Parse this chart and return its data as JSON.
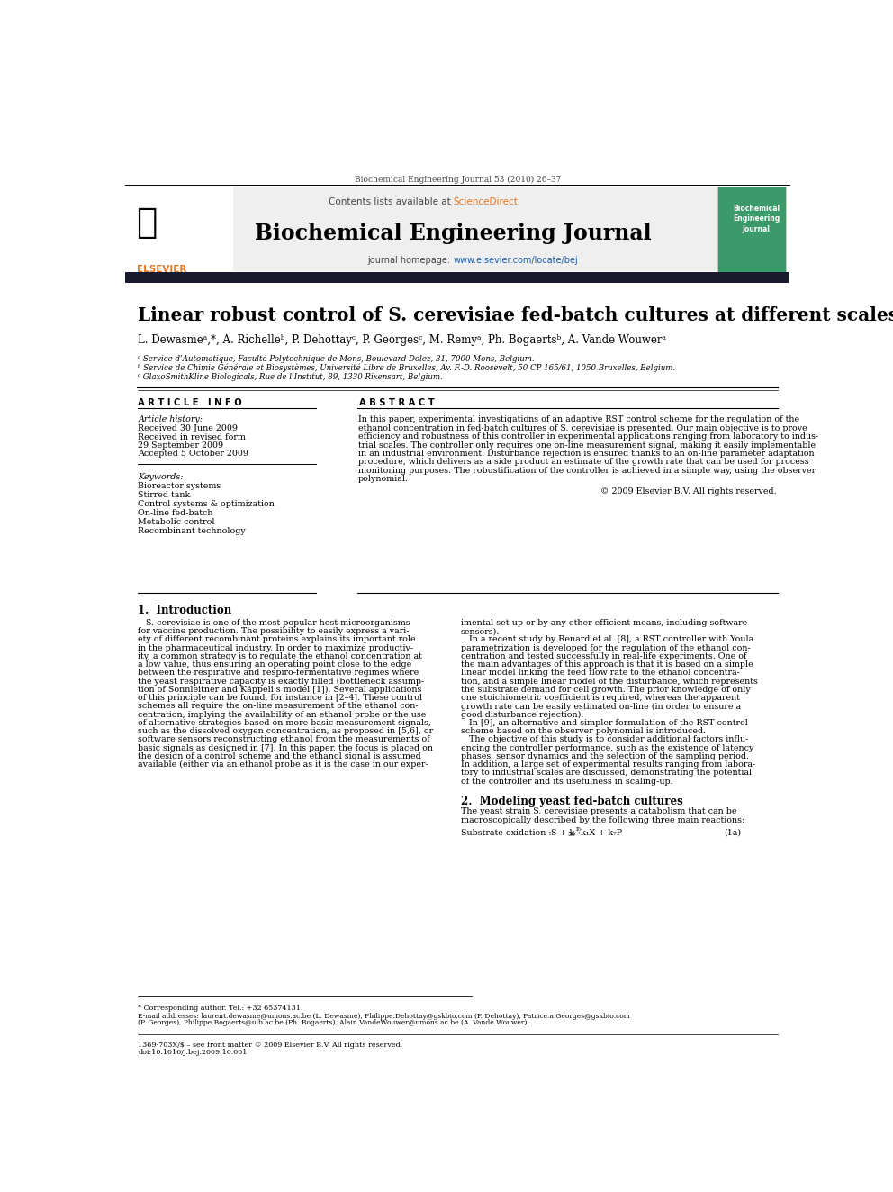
{
  "page_width": 9.92,
  "page_height": 13.23,
  "background_color": "#ffffff",
  "journal_header_text": "Biochemical Engineering Journal 53 (2010) 26–37",
  "journal_name": "Biochemical Engineering Journal",
  "contents_text": "Contents lists available at ScienceDirect",
  "journal_url": "journal homepage: www.elsevier.com/locate/bej",
  "paper_title": "Linear robust control of S. cerevisiae fed-batch cultures at different scales",
  "authors": "L. Dewasmeᵃ,*, A. Richelleᵇ, P. Dehottayᶜ, P. Georgesᶜ, M. Remyᵃ, Ph. Bogaertsᵇ, A. Vande Wouwerᵃ",
  "affil_a": "ᵃ Service d’Automatique, Faculté Polytechnique de Mons, Boulevard Dolez, 31, 7000 Mons, Belgium.",
  "affil_b": "ᵇ Service de Chimie Générale et Biosystèmes, Université Libre de Bruxelles, Av. F.-D. Roosevelt, 50 CP 165/61, 1050 Bruxelles, Belgium.",
  "affil_c": "ᶜ GlaxoSmithKline Biologicals, Rue de l’Institut, 89, 1330 Rixensart, Belgium.",
  "article_info_title": "A R T I C L E   I N F O",
  "abstract_title": "A B S T R A C T",
  "article_history_label": "Article history:",
  "received_text": "Received 30 June 2009",
  "revised_text": "Received in revised form",
  "revised_date": "29 September 2009",
  "accepted_text": "Accepted 5 October 2009",
  "keywords_label": "Keywords:",
  "keywords": [
    "Bioreactor systems",
    "Stirred tank",
    "Control systems & optimization",
    "On-line fed-batch",
    "Metabolic control",
    "Recombinant technology"
  ],
  "copyright_text": "© 2009 Elsevier B.V. All rights reserved.",
  "section1_title": "1.  Introduction",
  "section2_title": "2.  Modeling yeast fed-batch cultures",
  "footnote_star": "* Corresponding author. Tel.: +32 65374131.",
  "footnote_email": "E-mail addresses: laurent.dewasme@umons.ac.be (L. Dewasme), Philippe.Dehottay@gskbio.com (P. Dehottay), Patrice.a.Georges@gskbio.com",
  "footnote_email2": "(P. Georges), Philippe.Bogaerts@ulb.ac.be (Ph. Bogaerts), Alain.VandeWouwer@umons.ac.be (A. Vande Wouwer).",
  "footnote_issn": "1369-703X/$ – see front matter © 2009 Elsevier B.V. All rights reserved.",
  "footnote_doi": "doi:10.1016/j.bej.2009.10.001",
  "abstract_lines": [
    "In this paper, experimental investigations of an adaptive RST control scheme for the regulation of the",
    "ethanol concentration in fed-batch cultures of S. cerevisiae is presented. Our main objective is to prove",
    "efficiency and robustness of this controller in experimental applications ranging from laboratory to indus-",
    "trial scales. The controller only requires one on-line measurement signal, making it easily implementable",
    "in an industrial environment. Disturbance rejection is ensured thanks to an on-line parameter adaptation",
    "procedure, which delivers as a side product an estimate of the growth rate that can be used for process",
    "monitoring purposes. The robustification of the controller is achieved in a simple way, using the observer",
    "polynomial."
  ],
  "intro_col1_lines": [
    "   S. cerevisiae is one of the most popular host microorganisms",
    "for vaccine production. The possibility to easily express a vari-",
    "ety of different recombinant proteins explains its important role",
    "in the pharmaceutical industry. In order to maximize productiv-",
    "ity, a common strategy is to regulate the ethanol concentration at",
    "a low value, thus ensuring an operating point close to the edge",
    "between the respirative and respiro-fermentative regimes where",
    "the yeast respirative capacity is exactly filled (bottleneck assump-",
    "tion of Sonnleitner and Käppeli’s model [1]). Several applications",
    "of this principle can be found, for instance in [2–4]. These control",
    "schemes all require the on-line measurement of the ethanol con-",
    "centration, implying the availability of an ethanol probe or the use",
    "of alternative strategies based on more basic measurement signals,",
    "such as the dissolved oxygen concentration, as proposed in [5,6], or",
    "software sensors reconstructing ethanol from the measurements of",
    "basic signals as designed in [7]. In this paper, the focus is placed on",
    "the design of a control scheme and the ethanol signal is assumed",
    "available (either via an ethanol probe as it is the case in our exper-"
  ],
  "intro_col2_lines": [
    "imental set-up or by any other efficient means, including software",
    "sensors).",
    "   In a recent study by Renard et al. [8], a RST controller with Youla",
    "parametrization is developed for the regulation of the ethanol con-",
    "centration and tested successfully in real-life experiments. One of",
    "the main advantages of this approach is that it is based on a simple",
    "linear model linking the feed flow rate to the ethanol concentra-",
    "tion, and a simple linear model of the disturbance, which represents",
    "the substrate demand for cell growth. The prior knowledge of only",
    "one stoichiometric coefficient is required, whereas the apparent",
    "growth rate can be easily estimated on-line (in order to ensure a",
    "good disturbance rejection).",
    "   In [9], an alternative and simpler formulation of the RST control",
    "scheme based on the observer polynomial is introduced.",
    "   The objective of this study is to consider additional factors influ-",
    "encing the controller performance, such as the existence of latency",
    "phases, sensor dynamics and the selection of the sampling period.",
    "In addition, a large set of experimental results ranging from labora-",
    "tory to industrial scales are discussed, demonstrating the potential",
    "of the controller and its usefulness in scaling-up."
  ],
  "section2_lines": [
    "The yeast strain S. cerevisiae presents a catabolism that can be",
    "macroscopically described by the following three main reactions:"
  ]
}
